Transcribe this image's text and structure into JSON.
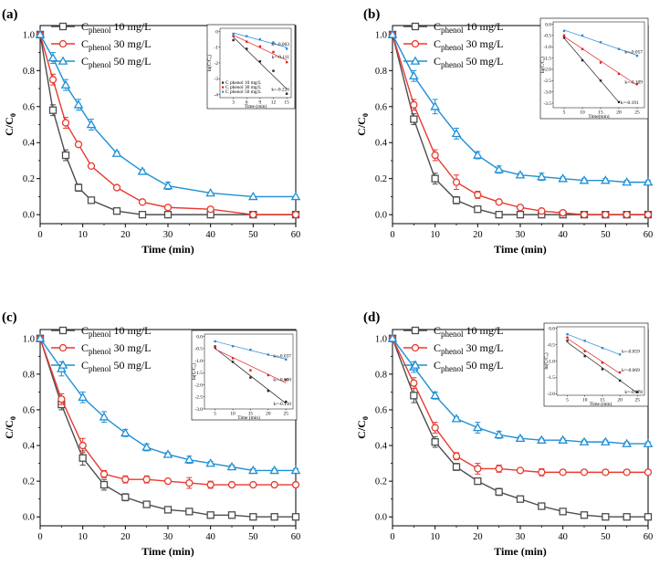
{
  "figure": {
    "colors": {
      "black": "#4d4d4d",
      "red": "#e8392f",
      "blue": "#1f8fd6",
      "inset_black": "#222222",
      "inset_red": "#e02020",
      "inset_blue": "#2a8ad8"
    }
  },
  "chart_data": [
    {
      "panel": "(a)",
      "type": "line",
      "xlabel": "Time (min)",
      "ylabel": "C/C",
      "ylabel_sub": "0",
      "xlim": [
        0,
        60
      ],
      "ylim": [
        -0.05,
        1.05
      ],
      "xticks": [
        0,
        10,
        20,
        30,
        40,
        50,
        60
      ],
      "yticks": [
        0.0,
        0.2,
        0.4,
        0.6,
        0.8,
        1.0
      ],
      "series": [
        {
          "name": "Cphenol 10 mg/L",
          "legend_main": "C",
          "legend_sub": "phenol",
          "legend_rest": " 10 mg/L",
          "marker": "square",
          "color": "#4d4d4d",
          "x": [
            0,
            3,
            6,
            9,
            12,
            18,
            24,
            30,
            40,
            50,
            60
          ],
          "y": [
            1.0,
            0.58,
            0.33,
            0.15,
            0.08,
            0.02,
            0.0,
            0.0,
            0.0,
            0.0,
            0.0
          ],
          "err": [
            0,
            0.03,
            0.03,
            0.02,
            0.01,
            0,
            0,
            0,
            0,
            0,
            0
          ]
        },
        {
          "name": "Cphenol 30 mg/L",
          "legend_main": "C",
          "legend_sub": "phenol",
          "legend_rest": " 30 mg/L",
          "marker": "circle",
          "color": "#e8392f",
          "x": [
            0,
            3,
            6,
            9,
            12,
            18,
            24,
            30,
            40,
            50,
            60
          ],
          "y": [
            1.0,
            0.75,
            0.51,
            0.39,
            0.27,
            0.15,
            0.07,
            0.04,
            0.03,
            0.0,
            0.0
          ],
          "err": [
            0,
            0.03,
            0.03,
            0.01,
            0.01,
            0,
            0.01,
            0,
            0,
            0,
            0
          ]
        },
        {
          "name": "Cphenol 50 mg/L",
          "legend_main": "C",
          "legend_sub": "phenol",
          "legend_rest": " 50 mg/L",
          "marker": "triangle",
          "color": "#1f8fd6",
          "x": [
            0,
            3,
            6,
            9,
            12,
            18,
            24,
            30,
            40,
            50,
            60
          ],
          "y": [
            1.0,
            0.87,
            0.72,
            0.61,
            0.5,
            0.34,
            0.24,
            0.16,
            0.12,
            0.1,
            0.1
          ],
          "err": [
            0,
            0.03,
            0.03,
            0.03,
            0.03,
            0.01,
            0.01,
            0.02,
            0,
            0,
            0
          ]
        }
      ],
      "inset": {
        "ylabel": "ln(C/C₀)",
        "xlabel": "Time (min)",
        "xlim": [
          0,
          16
        ],
        "ylim": [
          -4.2,
          0.2
        ],
        "xticks": [
          3,
          6,
          9,
          12,
          15
        ],
        "yticks": [
          0,
          -1,
          -2,
          -3,
          -4
        ],
        "fits": [
          {
            "name": "Cphenol 10 mg/L",
            "legend_label": "C phenol 10 mg/L",
            "k_label": "k=-0.226",
            "color": "#222222",
            "x": [
              3,
              6,
              9,
              12,
              15
            ],
            "y": [
              -0.55,
              -1.1,
              -1.9,
              -2.5,
              -3.95
            ]
          },
          {
            "name": "Cphenol 30 mg/L",
            "legend_label": "C phenol 30 mg/L",
            "k_label": "k=-0.111",
            "color": "#e02020",
            "x": [
              3,
              6,
              9,
              12,
              15
            ],
            "y": [
              -0.3,
              -0.65,
              -0.95,
              -1.3,
              -1.95
            ]
          },
          {
            "name": "Cphenol 50 mg/L",
            "legend_label": "C phenol 50 mg/L",
            "k_label": "k=-0.063",
            "color": "#2a8ad8",
            "x": [
              3,
              6,
              9,
              12,
              15
            ],
            "y": [
              -0.15,
              -0.3,
              -0.5,
              -0.7,
              -1.1
            ]
          }
        ]
      }
    },
    {
      "panel": "(b)",
      "type": "line",
      "xlabel": "Time (min)",
      "ylabel": "C/C",
      "ylabel_sub": "0",
      "xlim": [
        0,
        60
      ],
      "ylim": [
        -0.05,
        1.05
      ],
      "xticks": [
        0,
        10,
        20,
        30,
        40,
        50,
        60
      ],
      "yticks": [
        0.0,
        0.2,
        0.4,
        0.6,
        0.8,
        1.0
      ],
      "series": [
        {
          "name": "Cphenol 10 mg/L",
          "legend_main": "C",
          "legend_sub": "phenol",
          "legend_rest": " 10 mg/L",
          "marker": "square",
          "color": "#4d4d4d",
          "x": [
            0,
            5,
            10,
            15,
            20,
            25,
            30,
            35,
            40,
            45,
            50,
            55,
            60
          ],
          "y": [
            1.0,
            0.53,
            0.2,
            0.08,
            0.03,
            0.0,
            0.0,
            0.0,
            0.0,
            0.0,
            0.0,
            0.0,
            0.0
          ],
          "err": [
            0,
            0.03,
            0.03,
            0.02,
            0.01,
            0,
            0,
            0,
            0,
            0,
            0,
            0,
            0
          ]
        },
        {
          "name": "Cphenol 30 mg/L",
          "legend_main": "C",
          "legend_sub": "phenol",
          "legend_rest": " 30 mg/L",
          "marker": "circle",
          "color": "#e8392f",
          "x": [
            0,
            5,
            10,
            15,
            20,
            25,
            30,
            35,
            40,
            45,
            50,
            55,
            60
          ],
          "y": [
            1.0,
            0.61,
            0.33,
            0.18,
            0.11,
            0.07,
            0.04,
            0.02,
            0.01,
            0.0,
            0.0,
            0.0,
            0.0
          ],
          "err": [
            0,
            0.03,
            0.03,
            0.04,
            0.02,
            0.01,
            0.01,
            0,
            0,
            0,
            0,
            0,
            0
          ]
        },
        {
          "name": "Cphenol 50 mg/L",
          "legend_main": "C",
          "legend_sub": "phenol",
          "legend_rest": " 50 mg/L",
          "marker": "triangle",
          "color": "#1f8fd6",
          "x": [
            0,
            5,
            10,
            15,
            20,
            25,
            30,
            35,
            40,
            45,
            50,
            55,
            60
          ],
          "y": [
            1.0,
            0.77,
            0.6,
            0.45,
            0.33,
            0.25,
            0.22,
            0.21,
            0.2,
            0.19,
            0.19,
            0.18,
            0.18
          ],
          "err": [
            0,
            0.03,
            0.04,
            0.03,
            0.02,
            0.02,
            0.01,
            0.02,
            0.01,
            0.01,
            0.01,
            0.01,
            0.01
          ]
        }
      ],
      "inset": {
        "ylabel": "ln(C/C₀)",
        "xlabel": "Time(min)",
        "xlim": [
          2,
          27
        ],
        "ylim": [
          -3.7,
          0.1
        ],
        "xticks": [
          5,
          10,
          15,
          20,
          25
        ],
        "yticks": [
          0.0,
          -0.5,
          -1.0,
          -1.5,
          -2.0,
          -2.5,
          -3.0,
          -3.5
        ],
        "fits": [
          {
            "name": "Cphenol 10 mg/L",
            "k_label": "k=-0.191",
            "color": "#222222",
            "x": [
              5,
              10,
              15,
              20
            ],
            "y": [
              -0.6,
              -1.6,
              -2.5,
              -3.45
            ]
          },
          {
            "name": "Cphenol 30 mg/L",
            "k_label": "k=-0.109",
            "color": "#e02020",
            "x": [
              5,
              10,
              15,
              20,
              25
            ],
            "y": [
              -0.5,
              -1.1,
              -1.7,
              -2.2,
              -2.65
            ]
          },
          {
            "name": "Cphenol 50 mg/L",
            "k_label": "k=-0.057",
            "color": "#2a8ad8",
            "x": [
              5,
              10,
              15,
              20,
              25
            ],
            "y": [
              -0.3,
              -0.5,
              -0.8,
              -1.1,
              -1.4
            ]
          }
        ]
      }
    },
    {
      "panel": "(c)",
      "type": "line",
      "xlabel": "Time (min)",
      "ylabel": "C/C",
      "ylabel_sub": "0",
      "xlim": [
        0,
        60
      ],
      "ylim": [
        -0.05,
        1.05
      ],
      "xticks": [
        0,
        10,
        20,
        30,
        40,
        50,
        60
      ],
      "yticks": [
        0.0,
        0.2,
        0.4,
        0.6,
        0.8,
        1.0
      ],
      "series": [
        {
          "name": "Cphenol 10 mg/L",
          "legend_main": "C",
          "legend_sub": "phenol",
          "legend_rest": " 10 mg/L",
          "marker": "square",
          "color": "#4d4d4d",
          "x": [
            0,
            5,
            10,
            15,
            20,
            25,
            30,
            35,
            40,
            45,
            50,
            55,
            60
          ],
          "y": [
            1.0,
            0.63,
            0.33,
            0.18,
            0.11,
            0.07,
            0.04,
            0.03,
            0.01,
            0.01,
            0.0,
            0.0,
            0.0
          ],
          "err": [
            0,
            0.03,
            0.04,
            0.03,
            0.02,
            0.01,
            0,
            0,
            0,
            0,
            0,
            0,
            0
          ]
        },
        {
          "name": "Cphenol 30 mg/L",
          "legend_main": "C",
          "legend_sub": "phenol",
          "legend_rest": " 30 mg/L",
          "marker": "circle",
          "color": "#e8392f",
          "x": [
            0,
            5,
            10,
            15,
            20,
            25,
            30,
            35,
            40,
            45,
            50,
            55,
            60
          ],
          "y": [
            1.0,
            0.66,
            0.4,
            0.24,
            0.21,
            0.21,
            0.2,
            0.19,
            0.18,
            0.18,
            0.18,
            0.18,
            0.18
          ],
          "err": [
            0,
            0.03,
            0.04,
            0.02,
            0.02,
            0.02,
            0.01,
            0.03,
            0.02,
            0.01,
            0.01,
            0.01,
            0.01
          ]
        },
        {
          "name": "Cphenol 50 mg/L",
          "legend_main": "C",
          "legend_sub": "phenol",
          "legend_rest": " 50 mg/L",
          "marker": "triangle",
          "color": "#1f8fd6",
          "x": [
            0,
            5,
            10,
            15,
            20,
            25,
            30,
            35,
            40,
            45,
            50,
            55,
            60
          ],
          "y": [
            1.0,
            0.83,
            0.67,
            0.56,
            0.47,
            0.39,
            0.35,
            0.32,
            0.3,
            0.28,
            0.26,
            0.26,
            0.26
          ],
          "err": [
            0,
            0.04,
            0.03,
            0.03,
            0.02,
            0.02,
            0.01,
            0.02,
            0.01,
            0.01,
            0.01,
            0.01,
            0.01
          ]
        }
      ],
      "inset": {
        "ylabel": "ln(C/C₀)",
        "xlabel": "Time (min)",
        "xlim": [
          2,
          27
        ],
        "ylim": [
          -3.0,
          0.1
        ],
        "xticks": [
          5,
          10,
          15,
          20,
          25
        ],
        "yticks": [
          0.0,
          -0.5,
          -1.0,
          -1.5,
          -2.0,
          -2.5,
          -3.0
        ],
        "fits": [
          {
            "name": "Cphenol 10 mg/L",
            "k_label": "k=-0.110",
            "color": "#222222",
            "x": [
              5,
              10,
              15,
              20,
              25
            ],
            "y": [
              -0.45,
              -1.05,
              -1.7,
              -2.25,
              -2.7
            ]
          },
          {
            "name": "Cphenol 30 mg/L",
            "k_label": "k=-0.090",
            "color": "#e02020",
            "x": [
              5,
              10,
              15,
              20,
              25
            ],
            "y": [
              -0.4,
              -0.9,
              -1.4,
              -1.6,
              -1.8
            ]
          },
          {
            "name": "Cphenol 50 mg/L",
            "k_label": "k=-0.037",
            "color": "#2a8ad8",
            "x": [
              5,
              10,
              15,
              20,
              25
            ],
            "y": [
              -0.2,
              -0.4,
              -0.55,
              -0.75,
              -0.95
            ]
          }
        ]
      }
    },
    {
      "panel": "(d)",
      "type": "line",
      "xlabel": "Time (min)",
      "ylabel": "C/C",
      "ylabel_sub": "0",
      "xlim": [
        0,
        60
      ],
      "ylim": [
        -0.05,
        1.05
      ],
      "xticks": [
        0,
        10,
        20,
        30,
        40,
        50,
        60
      ],
      "yticks": [
        0.0,
        0.2,
        0.4,
        0.6,
        0.8,
        1.0
      ],
      "series": [
        {
          "name": "Cphenol 10 mg/L",
          "legend_main": "C",
          "legend_sub": "phenol",
          "legend_rest": " 10 mg/L",
          "marker": "square",
          "color": "#4d4d4d",
          "x": [
            0,
            5,
            10,
            15,
            20,
            25,
            30,
            35,
            40,
            45,
            50,
            55,
            60
          ],
          "y": [
            1.0,
            0.68,
            0.42,
            0.28,
            0.2,
            0.14,
            0.1,
            0.06,
            0.03,
            0.01,
            0.0,
            0.0,
            0.0
          ],
          "err": [
            0,
            0.04,
            0.03,
            0.02,
            0.01,
            0.02,
            0.01,
            0,
            0,
            0,
            0,
            0,
            0
          ]
        },
        {
          "name": "Cphenol 30 mg/L",
          "legend_main": "C",
          "legend_sub": "phenol",
          "legend_rest": " 30 mg/L",
          "marker": "circle",
          "color": "#e8392f",
          "x": [
            0,
            5,
            10,
            15,
            20,
            25,
            30,
            35,
            40,
            45,
            50,
            55,
            60
          ],
          "y": [
            1.0,
            0.75,
            0.5,
            0.34,
            0.27,
            0.27,
            0.26,
            0.25,
            0.25,
            0.25,
            0.25,
            0.25,
            0.25
          ],
          "err": [
            0,
            0.03,
            0.03,
            0.02,
            0.03,
            0.02,
            0.01,
            0.02,
            0.01,
            0.01,
            0.01,
            0.01,
            0.01
          ]
        },
        {
          "name": "Cphenol 50 mg/L",
          "legend_main": "C",
          "legend_sub": "phenol",
          "legend_rest": " 50 mg/L",
          "marker": "triangle",
          "color": "#1f8fd6",
          "x": [
            0,
            5,
            10,
            15,
            20,
            25,
            30,
            35,
            40,
            45,
            50,
            55,
            60
          ],
          "y": [
            1.0,
            0.84,
            0.68,
            0.55,
            0.5,
            0.46,
            0.44,
            0.43,
            0.43,
            0.42,
            0.42,
            0.41,
            0.41
          ],
          "err": [
            0,
            0.03,
            0.02,
            0.01,
            0.03,
            0.02,
            0.01,
            0.01,
            0.01,
            0.01,
            0.01,
            0.01,
            0.01
          ]
        }
      ],
      "inset": {
        "ylabel": "ln(C/C₀)",
        "xlabel": "Time (min)",
        "xlim": [
          2,
          27
        ],
        "ylim": [
          -2.05,
          0.05
        ],
        "xticks": [
          5,
          10,
          15,
          20,
          25
        ],
        "yticks": [
          0.0,
          -0.5,
          -1.0,
          -1.5,
          -2.0
        ],
        "fits": [
          {
            "name": "Cphenol 10 mg/L",
            "k_label": "k=-0.078",
            "color": "#222222",
            "x": [
              5,
              10,
              15,
              20,
              25
            ],
            "y": [
              -0.38,
              -0.85,
              -1.25,
              -1.6,
              -1.95
            ]
          },
          {
            "name": "Cphenol 30 mg/L",
            "k_label": "k=-0.069",
            "color": "#e02020",
            "x": [
              5,
              10,
              15,
              20
            ],
            "y": [
              -0.28,
              -0.7,
              -1.05,
              -1.35
            ]
          },
          {
            "name": "Cphenol 50 mg/L",
            "k_label": "k=-0.059",
            "color": "#2a8ad8",
            "x": [
              5,
              10,
              15,
              20
            ],
            "y": [
              -0.18,
              -0.38,
              -0.6,
              -0.8
            ]
          }
        ]
      }
    }
  ]
}
